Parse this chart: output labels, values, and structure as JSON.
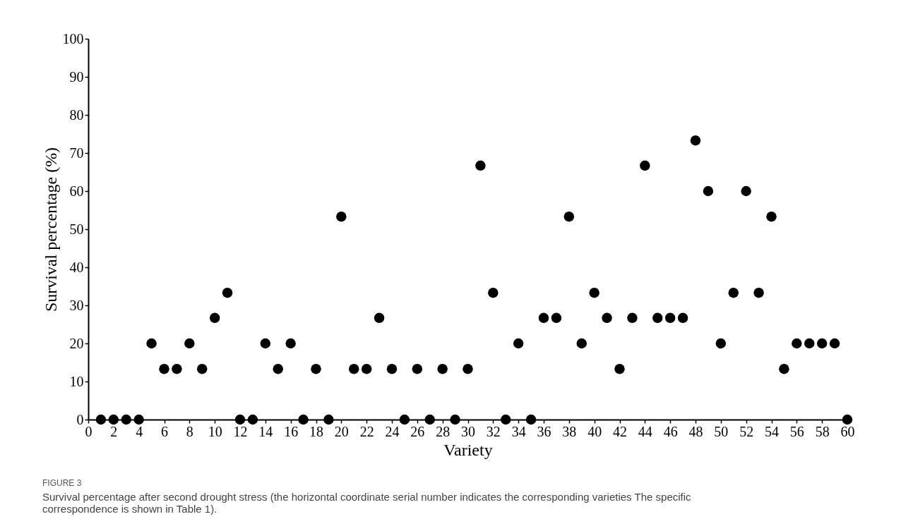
{
  "chart_data": {
    "type": "scatter",
    "xlabel": "Variety",
    "ylabel": "Survival percentage (%)",
    "x": [
      1,
      2,
      3,
      4,
      5,
      6,
      7,
      8,
      9,
      10,
      11,
      12,
      13,
      14,
      15,
      16,
      17,
      18,
      19,
      20,
      21,
      22,
      23,
      24,
      25,
      26,
      27,
      28,
      29,
      30,
      31,
      32,
      33,
      34,
      35,
      36,
      37,
      38,
      39,
      40,
      41,
      42,
      43,
      44,
      45,
      46,
      47,
      48,
      49,
      50,
      51,
      52,
      53,
      54,
      55,
      56,
      57,
      58,
      59,
      60
    ],
    "series": [
      {
        "color": "#000000",
        "values": [
          0,
          0,
          0,
          0,
          20,
          13.3,
          13.3,
          20,
          13.3,
          26.7,
          33.3,
          0,
          0,
          20,
          13.3,
          20,
          0,
          13.3,
          0,
          53.3,
          13.3,
          13.3,
          26.7,
          13.3,
          0,
          13.3,
          0,
          13.3,
          0,
          13.3,
          66.7,
          33.3,
          0,
          20,
          0,
          26.7,
          26.7,
          53.3,
          20,
          33.3,
          26.7,
          13.3,
          26.7,
          66.7,
          26.7,
          26.7,
          26.7,
          73.3,
          60,
          20,
          33.3,
          60,
          33.3,
          53.3,
          13.3,
          20,
          20,
          20,
          20,
          0
        ]
      }
    ],
    "xlim": [
      0,
      60
    ],
    "xticks": [
      0,
      2,
      4,
      6,
      8,
      10,
      12,
      14,
      16,
      18,
      20,
      22,
      24,
      26,
      28,
      30,
      32,
      34,
      36,
      38,
      40,
      42,
      44,
      46,
      48,
      50,
      52,
      54,
      56,
      58,
      60
    ],
    "ylim": [
      0,
      100
    ],
    "yticks": [
      0,
      10,
      20,
      30,
      40,
      50,
      60,
      70,
      80,
      90,
      100
    ],
    "grid": false,
    "legend": false,
    "marker": "circle",
    "annotations": [
      "FIGURE 3",
      "Survival percentage after second drought stress (the horizontal coordinate serial number indicates the corresponding varieties The specific correspondence is shown in Table 1)."
    ]
  }
}
